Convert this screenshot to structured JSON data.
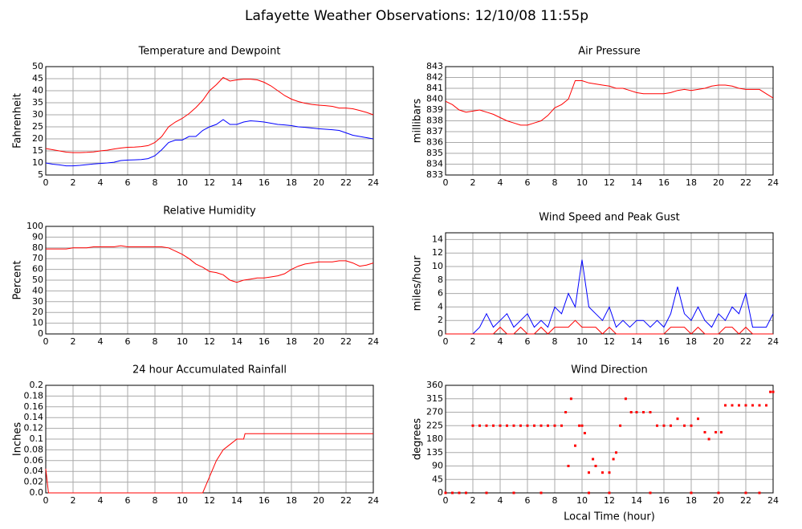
{
  "title": "Lafayette Weather Observations: 12/10/08 11:55p",
  "chart_data": [
    {
      "type": "line",
      "title": "Temperature and Dewpoint",
      "y_label": "Fahrenheit",
      "xlim": [
        0,
        24
      ],
      "xticks": [
        0,
        2,
        4,
        6,
        8,
        10,
        12,
        14,
        16,
        18,
        20,
        22,
        24
      ],
      "ylim": [
        5,
        50
      ],
      "yticks": [
        5,
        10,
        15,
        20,
        25,
        30,
        35,
        40,
        45,
        50
      ],
      "grid": true,
      "x": [
        0,
        0.5,
        1,
        1.5,
        2,
        2.5,
        3,
        3.5,
        4,
        4.5,
        5,
        5.5,
        6,
        6.5,
        7,
        7.5,
        8,
        8.5,
        9,
        9.5,
        10,
        10.5,
        11,
        11.5,
        12,
        12.5,
        13,
        13.5,
        14,
        14.5,
        15,
        15.5,
        16,
        16.5,
        17,
        17.5,
        18,
        18.5,
        19,
        19.5,
        20,
        20.5,
        21,
        21.5,
        22,
        22.5,
        23,
        23.5,
        24
      ],
      "series": [
        {
          "color": "#ff0000",
          "values": [
            16,
            15.5,
            15,
            14.5,
            14.3,
            14.3,
            14.4,
            14.6,
            15,
            15.3,
            15.8,
            16.2,
            16.5,
            16.6,
            16.8,
            17.2,
            18.5,
            21,
            25,
            27,
            28.5,
            30.5,
            33,
            36,
            40,
            42.5,
            45.5,
            44,
            44.5,
            44.8,
            44.8,
            44.5,
            43.5,
            42,
            40,
            38,
            36.5,
            35.5,
            34.8,
            34.3,
            34,
            33.8,
            33.5,
            32.8,
            32.8,
            32.5,
            31.8,
            31,
            30
          ]
        },
        {
          "color": "#0000ff",
          "values": [
            10,
            9.5,
            9.2,
            8.8,
            8.8,
            9,
            9.3,
            9.6,
            9.8,
            10,
            10.3,
            11,
            11.2,
            11.3,
            11.4,
            11.8,
            13,
            15.5,
            18.5,
            19.5,
            19.5,
            21,
            21,
            23.5,
            25,
            26,
            28,
            26,
            26,
            27,
            27.5,
            27.3,
            27,
            26.5,
            26,
            25.8,
            25.5,
            25,
            24.8,
            24.5,
            24.2,
            24,
            23.8,
            23.5,
            22.5,
            21.5,
            21,
            20.5,
            20
          ]
        }
      ]
    },
    {
      "type": "line",
      "title": "Air Pressure",
      "y_label": "millibars",
      "xlim": [
        0,
        24
      ],
      "xticks": [
        0,
        2,
        4,
        6,
        8,
        10,
        12,
        14,
        16,
        18,
        20,
        22,
        24
      ],
      "ylim": [
        833,
        843
      ],
      "yticks": [
        833,
        834,
        835,
        836,
        837,
        838,
        839,
        840,
        841,
        842,
        843
      ],
      "grid": true,
      "x": [
        0,
        0.5,
        1,
        1.5,
        2,
        2.5,
        3,
        3.5,
        4,
        4.5,
        5,
        5.5,
        6,
        6.5,
        7,
        7.5,
        8,
        8.5,
        9,
        9.5,
        10,
        10.5,
        11,
        11.5,
        12,
        12.5,
        13,
        13.5,
        14,
        14.5,
        15,
        15.5,
        16,
        16.5,
        17,
        17.5,
        18,
        18.5,
        19,
        19.5,
        20,
        20.5,
        21,
        21.5,
        22,
        22.5,
        23,
        23.5,
        24
      ],
      "series": [
        {
          "color": "#ff0000",
          "values": [
            839.8,
            839.5,
            839,
            838.8,
            838.9,
            839,
            838.8,
            838.6,
            838.3,
            838,
            837.8,
            837.6,
            837.6,
            837.8,
            838,
            838.5,
            839.2,
            839.5,
            840,
            841.7,
            841.7,
            841.5,
            841.4,
            841.3,
            841.2,
            841,
            841,
            840.8,
            840.6,
            840.5,
            840.5,
            840.5,
            840.5,
            840.6,
            840.8,
            840.9,
            840.8,
            840.9,
            841,
            841.2,
            841.3,
            841.3,
            841.2,
            841,
            840.9,
            840.9,
            840.9,
            840.5,
            840.1
          ]
        }
      ]
    },
    {
      "type": "line",
      "title": "Relative Humidity",
      "y_label": "Percent",
      "xlim": [
        0,
        24
      ],
      "xticks": [
        0,
        2,
        4,
        6,
        8,
        10,
        12,
        14,
        16,
        18,
        20,
        22,
        24
      ],
      "ylim": [
        0,
        100
      ],
      "yticks": [
        0,
        10,
        20,
        30,
        40,
        50,
        60,
        70,
        80,
        90,
        100
      ],
      "grid": true,
      "x": [
        0,
        0.5,
        1,
        1.5,
        2,
        2.5,
        3,
        3.5,
        4,
        4.5,
        5,
        5.5,
        6,
        6.5,
        7,
        7.5,
        8,
        8.5,
        9,
        9.5,
        10,
        10.5,
        11,
        11.5,
        12,
        12.5,
        13,
        13.5,
        14,
        14.5,
        15,
        15.5,
        16,
        16.5,
        17,
        17.5,
        18,
        18.5,
        19,
        19.5,
        20,
        20.5,
        21,
        21.5,
        22,
        22.5,
        23,
        23.5,
        24
      ],
      "series": [
        {
          "color": "#ff0000",
          "values": [
            79,
            79,
            79,
            79,
            80,
            80,
            80,
            81,
            81,
            81,
            81,
            82,
            81,
            81,
            81,
            81,
            81,
            81,
            80,
            77,
            74,
            70,
            65,
            62,
            58,
            57,
            55,
            50,
            48,
            50,
            51,
            52,
            52,
            53,
            54,
            56,
            60,
            63,
            65,
            66,
            67,
            67,
            67,
            68,
            68,
            66,
            63,
            64,
            66
          ]
        }
      ]
    },
    {
      "type": "line",
      "title": "Wind Speed and Peak Gust",
      "y_label": "miles/hour",
      "xlim": [
        0,
        24
      ],
      "xticks": [
        0,
        2,
        4,
        6,
        8,
        10,
        12,
        14,
        16,
        18,
        20,
        22,
        24
      ],
      "ylim": [
        0,
        15
      ],
      "yticks": [
        0,
        2,
        4,
        6,
        8,
        10,
        12,
        14
      ],
      "grid": true,
      "x": [
        0,
        0.5,
        1,
        1.5,
        2,
        2.5,
        3,
        3.5,
        4,
        4.5,
        5,
        5.5,
        6,
        6.5,
        7,
        7.5,
        8,
        8.5,
        9,
        9.5,
        10,
        10.5,
        11,
        11.5,
        12,
        12.5,
        13,
        13.5,
        14,
        14.5,
        15,
        15.5,
        16,
        16.5,
        17,
        17.5,
        18,
        18.5,
        19,
        19.5,
        20,
        20.5,
        21,
        21.5,
        22,
        22.5,
        23,
        23.5,
        24
      ],
      "series": [
        {
          "color": "#0000ff",
          "values": [
            0,
            0,
            0,
            0,
            0,
            1,
            3,
            1,
            2,
            3,
            1,
            2,
            3,
            1,
            2,
            1,
            4,
            3,
            6,
            4,
            11,
            4,
            3,
            2,
            4,
            1,
            2,
            1,
            2,
            2,
            1,
            2,
            1,
            3,
            7,
            3,
            2,
            4,
            2,
            1,
            3,
            2,
            4,
            3,
            6,
            1,
            1,
            1,
            3
          ]
        },
        {
          "color": "#ff0000",
          "values": [
            0,
            0,
            0,
            0,
            0,
            0,
            0,
            0,
            1,
            0,
            0,
            1,
            0,
            0,
            1,
            0,
            1,
            1,
            1,
            2,
            1,
            1,
            1,
            0,
            1,
            0,
            0,
            0,
            0,
            0,
            0,
            0,
            0,
            1,
            1,
            1,
            0,
            1,
            0,
            0,
            0,
            1,
            1,
            0,
            1,
            0,
            0,
            0,
            0
          ]
        }
      ]
    },
    {
      "type": "line",
      "title": "24 hour Accumulated Rainfall",
      "y_label": "Inches",
      "xlim": [
        0,
        24
      ],
      "xticks": [
        0,
        2,
        4,
        6,
        8,
        10,
        12,
        14,
        16,
        18,
        20,
        22,
        24
      ],
      "ylim": [
        0,
        0.2
      ],
      "yticks": [
        {
          "value": 0,
          "label": "0.0"
        },
        0.02,
        0.04,
        0.06,
        0.08,
        0.1,
        0.12,
        0.14,
        0.16,
        0.18,
        0.2
      ],
      "grid": true,
      "x": [
        0,
        0.2,
        11.5,
        12,
        12.5,
        13,
        13.5,
        14,
        14.5,
        14.6,
        24
      ],
      "series": [
        {
          "color": "#ff0000",
          "values": [
            0.045,
            0,
            0,
            0.03,
            0.06,
            0.08,
            0.09,
            0.1,
            0.1,
            0.11,
            0.11
          ]
        }
      ]
    },
    {
      "type": "scatter",
      "title": "Wind Direction",
      "y_label": "degrees",
      "x_label": "Local Time (hour)",
      "xlim": [
        0,
        24
      ],
      "xticks": [
        0,
        2,
        4,
        6,
        8,
        10,
        12,
        14,
        16,
        18,
        20,
        22,
        24
      ],
      "ylim": [
        0,
        360
      ],
      "yticks": [
        0,
        45,
        90,
        135,
        180,
        225,
        270,
        315,
        360
      ],
      "grid": true,
      "color": "#ff0000",
      "x": [
        0,
        0.5,
        1,
        1.5,
        2,
        2.5,
        3,
        3.5,
        4,
        4.5,
        5,
        5.5,
        6,
        6.5,
        7,
        7.5,
        8,
        8.5,
        8.8,
        9,
        9.2,
        9.5,
        9.8,
        10,
        10.2,
        10.5,
        10.8,
        11,
        11.5,
        12,
        12.3,
        12.5,
        12.8,
        13.2,
        13.6,
        14,
        14.5,
        15,
        15.5,
        16,
        16.5,
        17,
        17.5,
        18,
        18.5,
        19,
        19.3,
        19.8,
        20.2,
        20.5,
        21,
        21.5,
        22,
        22.5,
        23,
        23.5,
        23.8,
        24,
        3,
        5,
        7,
        10.5,
        12,
        15,
        18,
        20,
        22,
        23
      ],
      "values": [
        0,
        0,
        0,
        0,
        225,
        225,
        225,
        225,
        225,
        225,
        225,
        225,
        225,
        225,
        225,
        225,
        225,
        225,
        270,
        90,
        315,
        158,
        225,
        225,
        200,
        68,
        113,
        90,
        68,
        68,
        113,
        135,
        225,
        315,
        270,
        270,
        270,
        270,
        225,
        225,
        225,
        248,
        225,
        225,
        248,
        203,
        180,
        203,
        203,
        293,
        293,
        293,
        293,
        293,
        293,
        293,
        338,
        338,
        0,
        0,
        0,
        0,
        0,
        0,
        0,
        0,
        0,
        0
      ]
    }
  ]
}
